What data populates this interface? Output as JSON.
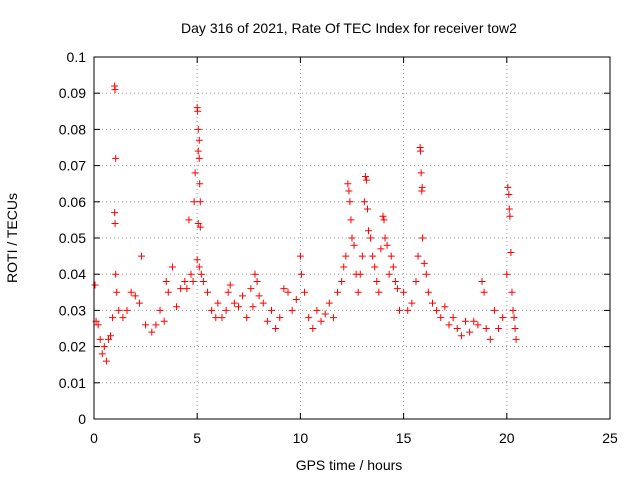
{
  "chart_data": {
    "type": "scatter",
    "title": "Day 316 of 2021, Rate Of TEC Index for receiver tow2",
    "xlabel": "GPS time / hours",
    "ylabel": "ROTI / TECUs",
    "xlim": [
      0,
      25
    ],
    "ylim": [
      0,
      0.1
    ],
    "x_ticks": [
      "0",
      "5",
      "10",
      "15",
      "20",
      "25"
    ],
    "y_ticks": [
      "0",
      "0.01",
      "0.02",
      "0.03",
      "0.04",
      "0.05",
      "0.06",
      "0.07",
      "0.08",
      "0.09",
      "0.1"
    ],
    "grid": true,
    "marker": "+",
    "color": "#ff0000",
    "series": [
      {
        "points": [
          [
            0.05,
            0.037
          ],
          [
            0.1,
            0.027
          ],
          [
            0.2,
            0.026
          ],
          [
            0.3,
            0.022
          ],
          [
            0.4,
            0.018
          ],
          [
            0.5,
            0.02
          ],
          [
            0.6,
            0.016
          ],
          [
            0.7,
            0.022
          ],
          [
            0.8,
            0.023
          ],
          [
            0.9,
            0.028
          ],
          [
            1.0,
            0.092
          ],
          [
            1.02,
            0.091
          ],
          [
            1.05,
            0.072
          ],
          [
            1.0,
            0.057
          ],
          [
            1.02,
            0.054
          ],
          [
            1.05,
            0.04
          ],
          [
            1.1,
            0.035
          ],
          [
            1.2,
            0.03
          ],
          [
            1.4,
            0.028
          ],
          [
            1.6,
            0.03
          ],
          [
            1.8,
            0.035
          ],
          [
            2.0,
            0.034
          ],
          [
            2.2,
            0.032
          ],
          [
            2.3,
            0.045
          ],
          [
            2.5,
            0.026
          ],
          [
            2.8,
            0.024
          ],
          [
            3.0,
            0.026
          ],
          [
            3.2,
            0.03
          ],
          [
            3.4,
            0.027
          ],
          [
            3.5,
            0.038
          ],
          [
            3.6,
            0.035
          ],
          [
            3.8,
            0.042
          ],
          [
            4.0,
            0.031
          ],
          [
            4.2,
            0.036
          ],
          [
            4.4,
            0.038
          ],
          [
            4.5,
            0.036
          ],
          [
            4.6,
            0.055
          ],
          [
            4.7,
            0.04
          ],
          [
            4.8,
            0.038
          ],
          [
            4.85,
            0.06
          ],
          [
            4.9,
            0.068
          ],
          [
            5.0,
            0.086
          ],
          [
            5.02,
            0.085
          ],
          [
            5.05,
            0.08
          ],
          [
            5.1,
            0.077
          ],
          [
            5.05,
            0.074
          ],
          [
            5.1,
            0.072
          ],
          [
            5.12,
            0.065
          ],
          [
            5.15,
            0.06
          ],
          [
            5.05,
            0.054
          ],
          [
            5.15,
            0.053
          ],
          [
            5.0,
            0.044
          ],
          [
            5.1,
            0.042
          ],
          [
            5.2,
            0.04
          ],
          [
            5.3,
            0.038
          ],
          [
            5.5,
            0.035
          ],
          [
            5.7,
            0.03
          ],
          [
            5.9,
            0.028
          ],
          [
            6.0,
            0.032
          ],
          [
            6.2,
            0.028
          ],
          [
            6.4,
            0.03
          ],
          [
            6.5,
            0.035
          ],
          [
            6.6,
            0.037
          ],
          [
            6.8,
            0.032
          ],
          [
            7.0,
            0.031
          ],
          [
            7.2,
            0.034
          ],
          [
            7.4,
            0.028
          ],
          [
            7.6,
            0.036
          ],
          [
            7.7,
            0.031
          ],
          [
            7.8,
            0.04
          ],
          [
            7.9,
            0.038
          ],
          [
            8.0,
            0.034
          ],
          [
            8.2,
            0.032
          ],
          [
            8.4,
            0.027
          ],
          [
            8.6,
            0.03
          ],
          [
            8.8,
            0.025
          ],
          [
            9.0,
            0.028
          ],
          [
            9.2,
            0.036
          ],
          [
            9.4,
            0.035
          ],
          [
            9.6,
            0.03
          ],
          [
            9.8,
            0.033
          ],
          [
            10.0,
            0.045
          ],
          [
            10.05,
            0.04
          ],
          [
            10.2,
            0.035
          ],
          [
            10.4,
            0.028
          ],
          [
            10.6,
            0.025
          ],
          [
            10.8,
            0.03
          ],
          [
            11.0,
            0.027
          ],
          [
            11.2,
            0.029
          ],
          [
            11.4,
            0.032
          ],
          [
            11.6,
            0.028
          ],
          [
            11.8,
            0.035
          ],
          [
            12.0,
            0.038
          ],
          [
            12.1,
            0.042
          ],
          [
            12.2,
            0.045
          ],
          [
            12.3,
            0.065
          ],
          [
            12.35,
            0.063
          ],
          [
            12.4,
            0.06
          ],
          [
            12.45,
            0.055
          ],
          [
            12.5,
            0.05
          ],
          [
            12.6,
            0.048
          ],
          [
            12.7,
            0.04
          ],
          [
            12.8,
            0.035
          ],
          [
            12.9,
            0.04
          ],
          [
            13.0,
            0.045
          ],
          [
            13.1,
            0.06
          ],
          [
            13.15,
            0.067
          ],
          [
            13.2,
            0.066
          ],
          [
            13.25,
            0.058
          ],
          [
            13.3,
            0.052
          ],
          [
            13.4,
            0.05
          ],
          [
            13.5,
            0.045
          ],
          [
            13.6,
            0.042
          ],
          [
            13.7,
            0.038
          ],
          [
            13.8,
            0.035
          ],
          [
            13.9,
            0.047
          ],
          [
            14.0,
            0.056
          ],
          [
            14.05,
            0.055
          ],
          [
            14.1,
            0.05
          ],
          [
            14.2,
            0.048
          ],
          [
            14.3,
            0.04
          ],
          [
            14.4,
            0.045
          ],
          [
            14.5,
            0.042
          ],
          [
            14.6,
            0.038
          ],
          [
            14.7,
            0.036
          ],
          [
            14.8,
            0.03
          ],
          [
            15.0,
            0.035
          ],
          [
            15.2,
            0.03
          ],
          [
            15.4,
            0.032
          ],
          [
            15.6,
            0.038
          ],
          [
            15.7,
            0.045
          ],
          [
            15.8,
            0.075
          ],
          [
            15.82,
            0.074
          ],
          [
            15.85,
            0.068
          ],
          [
            15.9,
            0.064
          ],
          [
            15.88,
            0.063
          ],
          [
            15.92,
            0.05
          ],
          [
            16.0,
            0.043
          ],
          [
            16.1,
            0.04
          ],
          [
            16.2,
            0.035
          ],
          [
            16.4,
            0.032
          ],
          [
            16.6,
            0.03
          ],
          [
            16.8,
            0.028
          ],
          [
            17.0,
            0.031
          ],
          [
            17.2,
            0.026
          ],
          [
            17.4,
            0.028
          ],
          [
            17.6,
            0.025
          ],
          [
            17.8,
            0.023
          ],
          [
            18.0,
            0.027
          ],
          [
            18.2,
            0.024
          ],
          [
            18.4,
            0.027
          ],
          [
            18.6,
            0.026
          ],
          [
            18.8,
            0.038
          ],
          [
            18.9,
            0.035
          ],
          [
            19.0,
            0.025
          ],
          [
            19.2,
            0.022
          ],
          [
            19.4,
            0.03
          ],
          [
            19.6,
            0.025
          ],
          [
            19.8,
            0.028
          ],
          [
            20.0,
            0.04
          ],
          [
            20.05,
            0.064
          ],
          [
            20.1,
            0.062
          ],
          [
            20.12,
            0.058
          ],
          [
            20.15,
            0.056
          ],
          [
            20.2,
            0.046
          ],
          [
            20.25,
            0.035
          ],
          [
            20.3,
            0.03
          ],
          [
            20.35,
            0.028
          ],
          [
            20.4,
            0.025
          ],
          [
            20.45,
            0.022
          ]
        ]
      }
    ]
  }
}
